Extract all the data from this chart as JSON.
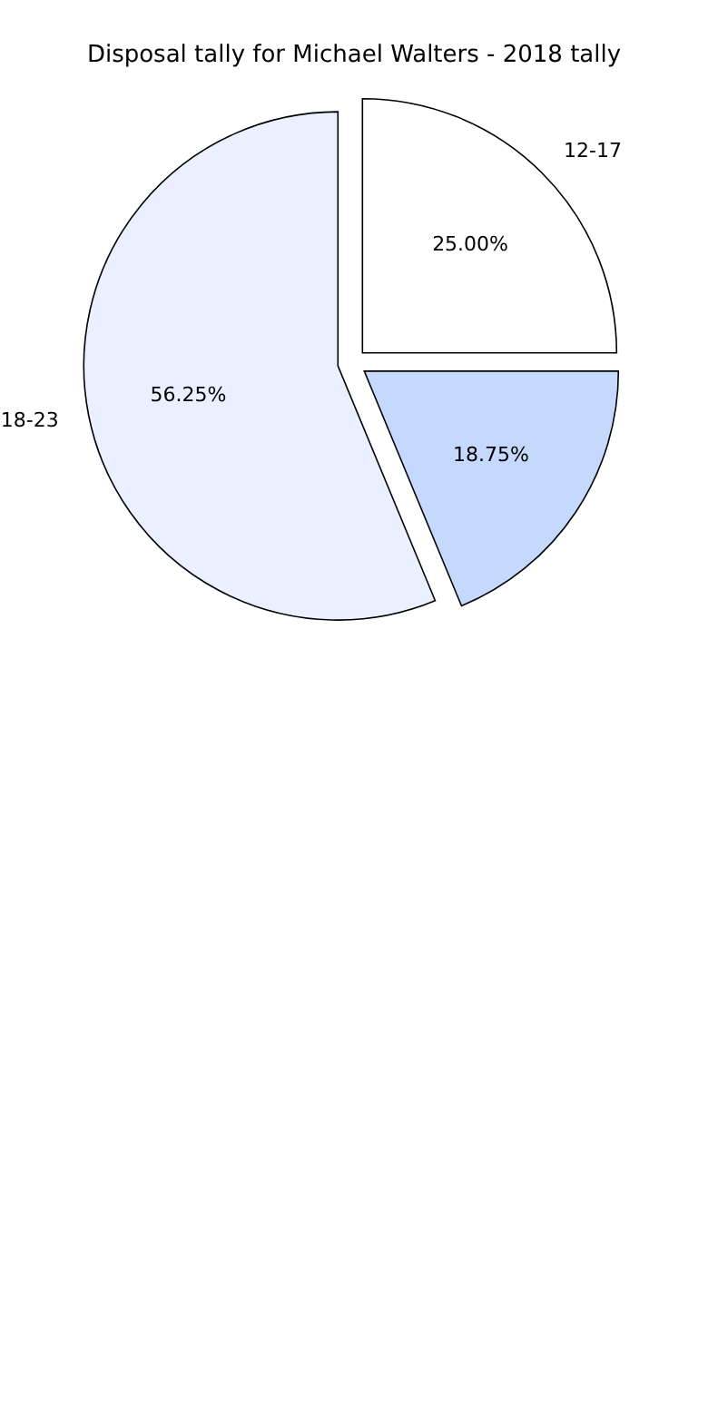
{
  "chart_data": {
    "type": "pie",
    "title": "Disposal tally for Michael Walters - 2018 tally",
    "categories": [
      "12-17",
      null,
      "18-23"
    ],
    "values": [
      25,
      18.75,
      56.25
    ],
    "value_labels": [
      "25.00%",
      "18.75%",
      "56.25%"
    ],
    "colors": [
      "#ffffff",
      "#c5d9ff",
      "#eaf0ff"
    ]
  }
}
